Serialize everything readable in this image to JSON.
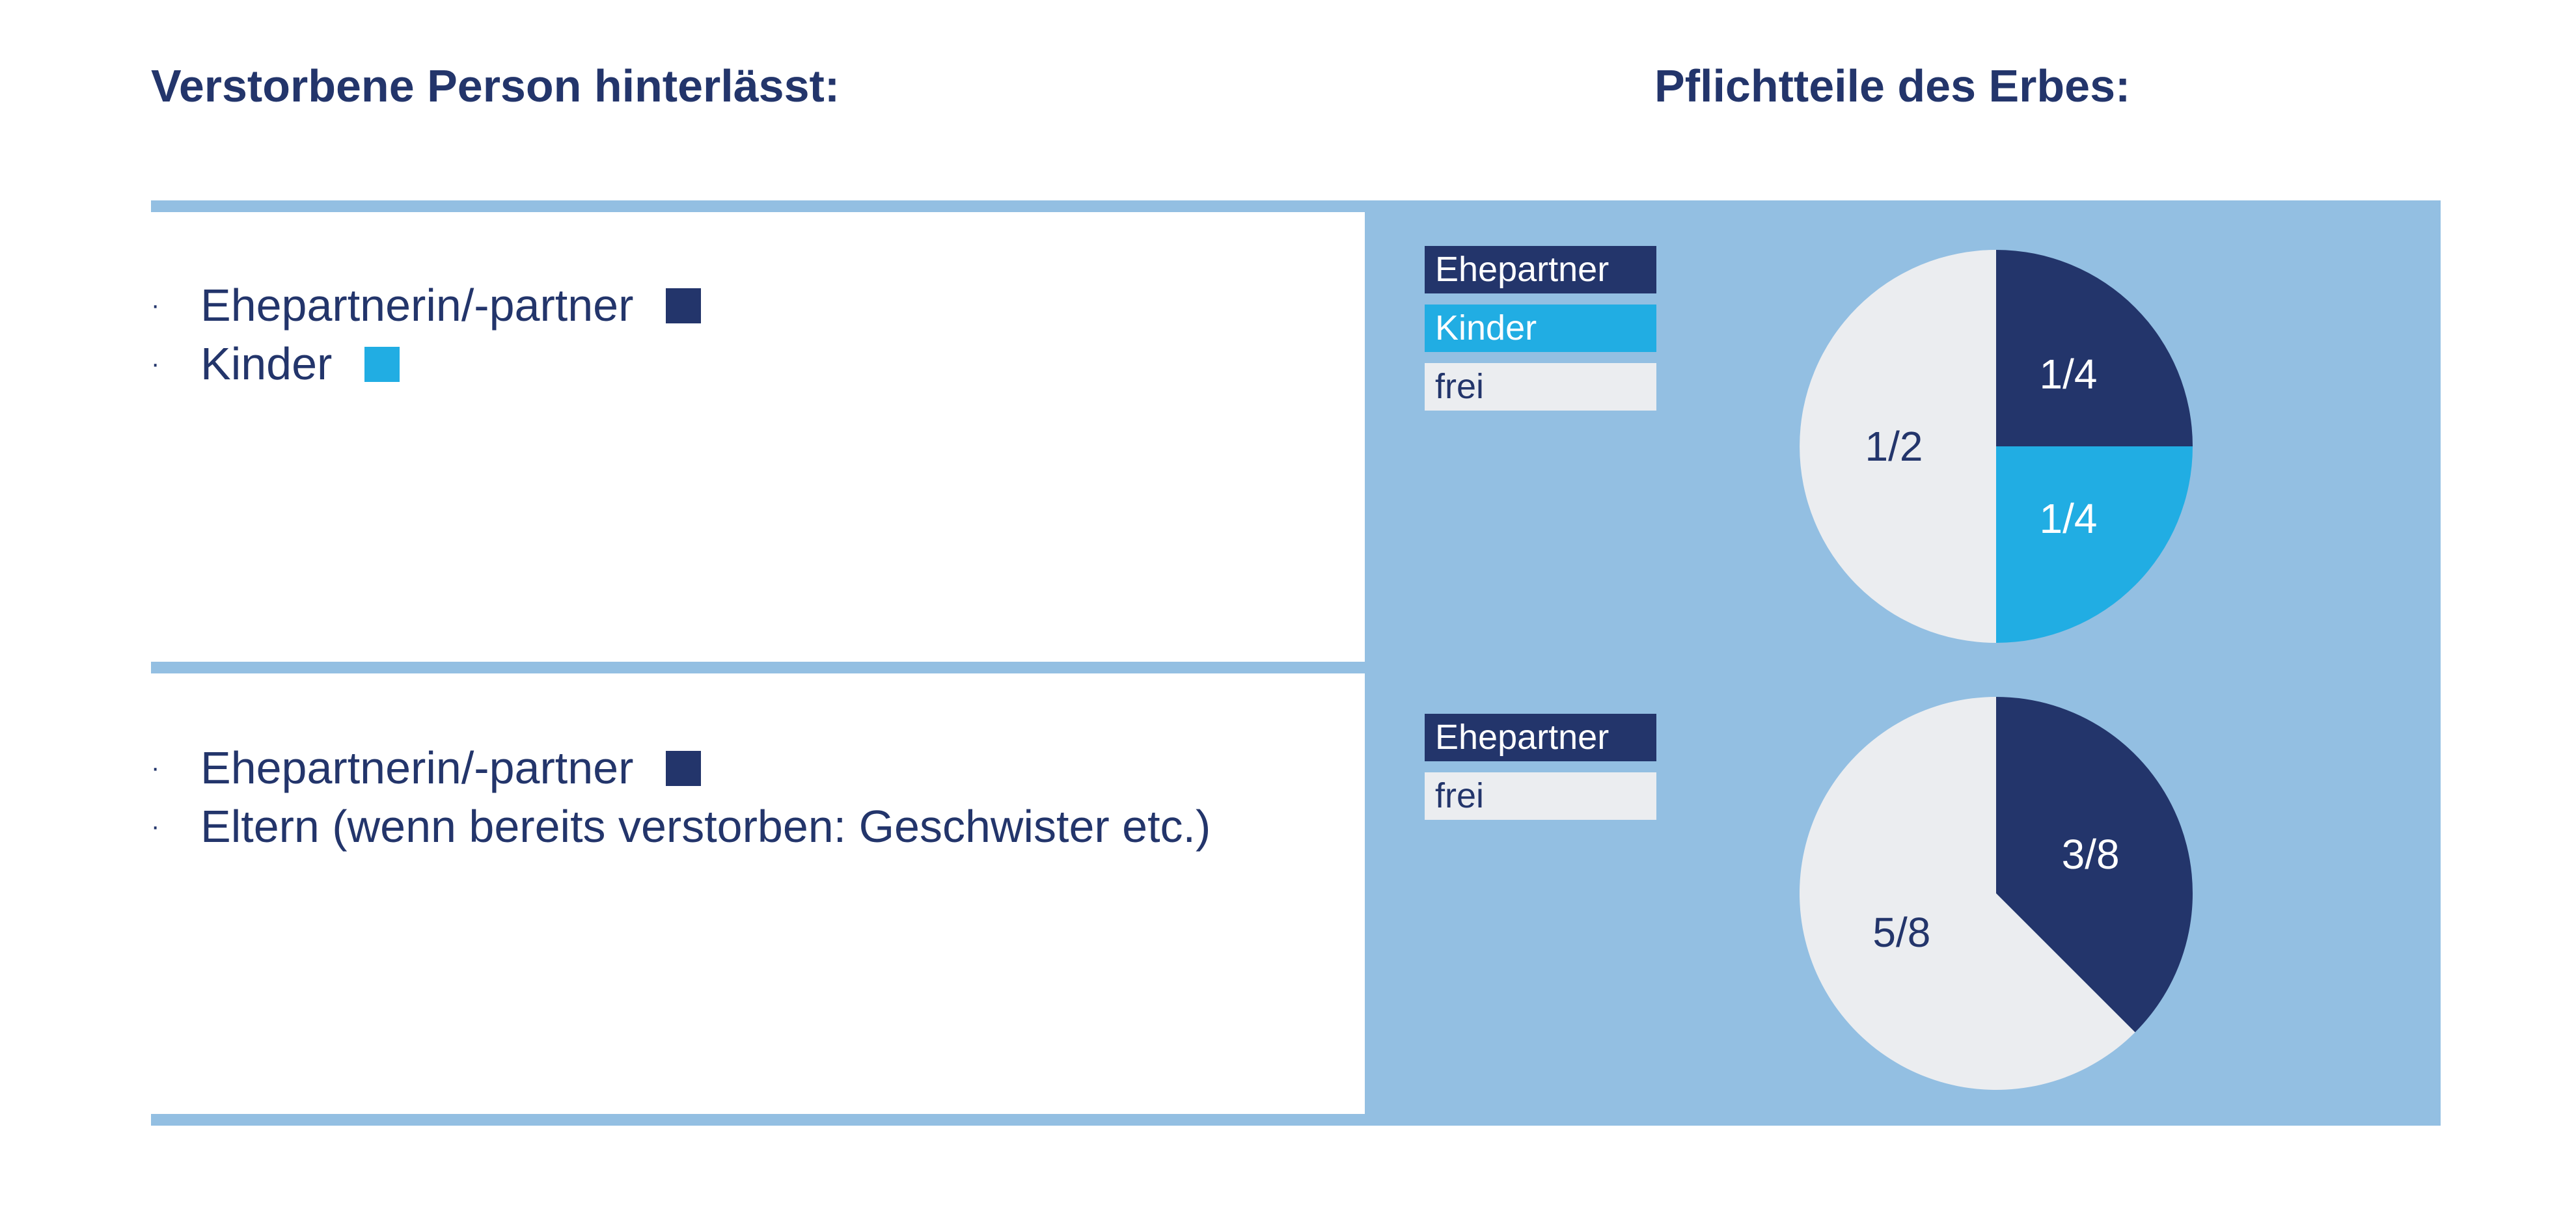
{
  "headings": {
    "left": "Verstorbene Person hinterlässt:",
    "right": "Pflichtteile des Erbes:"
  },
  "colors": {
    "navy": "#23356b",
    "cyan": "#21ade3",
    "free": "#ebedf0",
    "panel": "#93bfe2"
  },
  "rows": [
    {
      "heirs": [
        {
          "bullet": "·",
          "label": "Ehepartnerin/-partner",
          "marker_color": "#23356b"
        },
        {
          "bullet": "·",
          "label": "Kinder",
          "marker_color": "#21ade3"
        }
      ]
    },
    {
      "heirs": [
        {
          "bullet": "·",
          "label": "Ehepartnerin/-partner",
          "marker_color": "#23356b"
        },
        {
          "bullet": "·",
          "label": "Eltern (wenn bereits verstorben: Geschwister etc.)"
        }
      ]
    }
  ],
  "chart_data": [
    {
      "type": "pie",
      "legend": [
        "Ehepartner",
        "Kinder",
        "frei"
      ],
      "slices": [
        {
          "label": "Ehepartner",
          "value": 0.25,
          "display": "1/4",
          "color": "#23356b",
          "text_color": "#ffffff"
        },
        {
          "label": "Kinder",
          "value": 0.25,
          "display": "1/4",
          "color": "#21ade3",
          "text_color": "#ffffff"
        },
        {
          "label": "frei",
          "value": 0.5,
          "display": "1/2",
          "color": "#ebedf0",
          "text_color": "#23356b"
        }
      ]
    },
    {
      "type": "pie",
      "legend": [
        "Ehepartner",
        "frei"
      ],
      "slices": [
        {
          "label": "Ehepartner",
          "value": 0.375,
          "display": "3/8",
          "color": "#23356b",
          "text_color": "#ffffff"
        },
        {
          "label": "frei",
          "value": 0.625,
          "display": "5/8",
          "color": "#ebedf0",
          "text_color": "#23356b"
        }
      ]
    }
  ]
}
